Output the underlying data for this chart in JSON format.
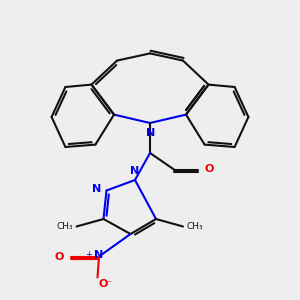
{
  "background_color": "#eeeeee",
  "bond_color": "#111111",
  "n_color": "#0000ee",
  "o_color": "#ee0000",
  "lw": 1.5,
  "figsize": [
    3.0,
    3.0
  ],
  "dpi": 100,
  "xlim": [
    0,
    10
  ],
  "ylim": [
    0,
    10
  ]
}
